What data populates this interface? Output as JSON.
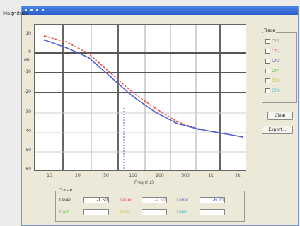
{
  "window": {
    "label": "Magnitude"
  },
  "axes": {
    "ylabel": "dB",
    "xlabel": "Freq (Hz)",
    "yticks": [
      "10",
      "0",
      "-10",
      "-20",
      "-30",
      "-40",
      "-50",
      "-60"
    ],
    "xticks": [
      "10",
      "20",
      "50",
      "100",
      "200",
      "500",
      "1k",
      "2k"
    ]
  },
  "legend": {
    "title": "Trace",
    "items": [
      {
        "label": "Ch1",
        "color": "#888888"
      },
      {
        "label": "Ch2",
        "color": "#e05050"
      },
      {
        "label": "Ch3",
        "color": "#4f5fd0"
      },
      {
        "label": "Ch4",
        "color": "#56b050"
      },
      {
        "label": "Ch5",
        "color": "#c8c030"
      },
      {
        "label": "Ch6",
        "color": "#40b8c8"
      }
    ]
  },
  "buttons": {
    "b1": "Clear",
    "b2": "Export..."
  },
  "panel": {
    "title": "Cursor",
    "rows": [
      {
        "label": "Level",
        "value": "-1.50",
        "color": "#333333"
      },
      {
        "label": "Level",
        "value": "-2.50",
        "color": "#e05050"
      },
      {
        "label": "Level",
        "value": "-6.20",
        "color": "#4f5fd0"
      },
      {
        "label": "Gain",
        "value": "",
        "color": "#56b050"
      },
      {
        "label": "Gain",
        "value": "",
        "color": "#c8c030"
      },
      {
        "label": "Gain",
        "value": "",
        "color": "#40b8c8"
      }
    ]
  },
  "chart_data": {
    "type": "line",
    "x": [
      1,
      2,
      3,
      4,
      5,
      6,
      7,
      8,
      9,
      10
    ],
    "series": [
      {
        "name": "Ch2",
        "color": "#e05050",
        "values": [
          7,
          4,
          -2,
          -12,
          -22,
          -30,
          -37,
          -41,
          -43,
          -45
        ]
      },
      {
        "name": "Ch3",
        "color": "#4f5fd0",
        "values": [
          5,
          1,
          -4,
          -14,
          -24,
          -32,
          -38,
          -41,
          -43,
          -45
        ]
      }
    ],
    "ylim": [
      -60,
      10
    ]
  }
}
